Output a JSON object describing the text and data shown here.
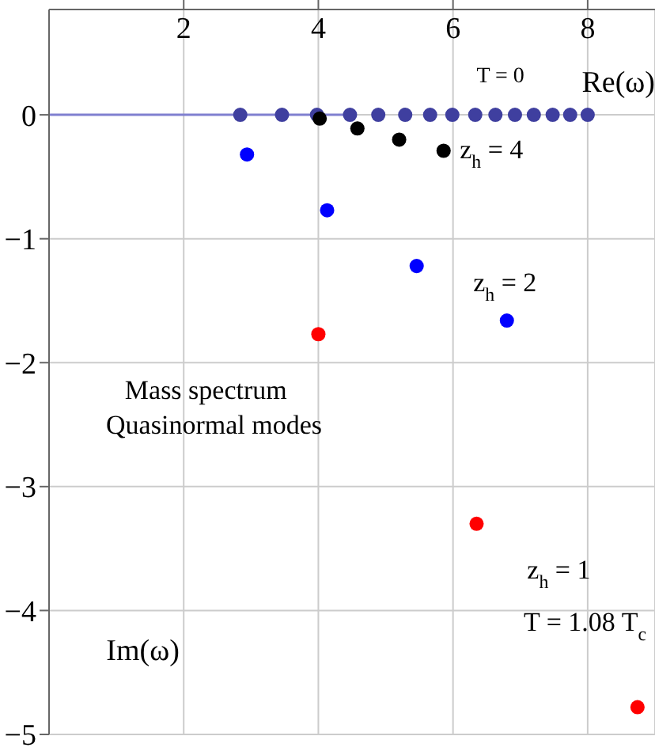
{
  "chart_data": {
    "type": "scatter",
    "xlabel": "Re(ω)",
    "ylabel": "Im(ω)",
    "xlim": [
      0,
      9
    ],
    "ylim": [
      -5,
      0.85
    ],
    "xticks": [
      2,
      4,
      6,
      8
    ],
    "yticks": [
      -5,
      -4,
      -3,
      -2,
      -1,
      0
    ],
    "grid": true,
    "marker": "circle",
    "annotations": [
      "Mass spectrum",
      "Quasinormal modes",
      "T = 1.08 T$_{c}$"
    ],
    "series": [
      {
        "type": "line",
        "marker": "none",
        "color": "#8080d0",
        "x": [
          0,
          4.5
        ],
        "values": [
          0,
          0
        ]
      },
      {
        "name": "T = 0",
        "color": "#3f3f9f",
        "x": [
          2.84,
          3.46,
          3.98,
          4.47,
          4.89,
          5.29,
          5.66,
          5.99,
          6.33,
          6.63,
          6.92,
          7.2,
          7.48,
          7.74,
          8.0
        ],
        "values": [
          0,
          0,
          0,
          0,
          0,
          0,
          0,
          0,
          0,
          0,
          0,
          0,
          0,
          0,
          0
        ]
      },
      {
        "name": "z$_{h}$ = 4",
        "color": "#000000",
        "x": [
          4.02,
          4.58,
          5.2,
          5.86
        ],
        "values": [
          -0.03,
          -0.11,
          -0.2,
          -0.29
        ]
      },
      {
        "name": "z$_{h}$ = 2",
        "color": "#0000ff",
        "x": [
          2.94,
          4.13,
          5.46,
          6.8
        ],
        "values": [
          -0.32,
          -0.77,
          -1.22,
          -1.66
        ]
      },
      {
        "name": "z$_{h}$ = 1",
        "color": "#ff0000",
        "x": [
          4.0,
          6.35,
          8.74
        ],
        "values": [
          -1.77,
          -3.3,
          -4.78
        ]
      }
    ]
  }
}
